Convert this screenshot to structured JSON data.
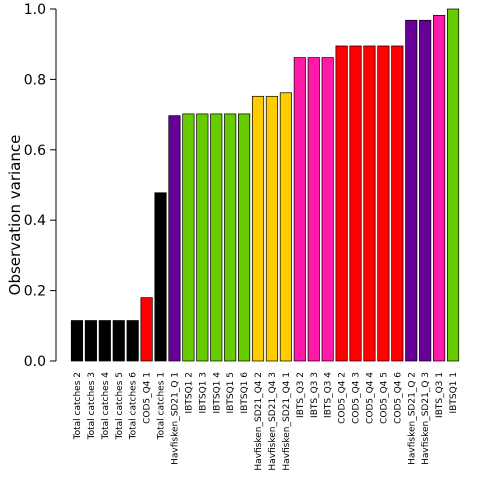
{
  "chart_data": {
    "type": "bar",
    "title": "",
    "xlabel": "",
    "ylabel": "Observation variance",
    "ylim": [
      0,
      1.0
    ],
    "yticks": [
      "0.0",
      "0.2",
      "0.4",
      "0.6",
      "0.8",
      "1.0"
    ],
    "grid": false,
    "legend": "none",
    "categories": [
      "Total catches 2",
      "Total catches 3",
      "Total catches 4",
      "Total catches 5",
      "Total catches 6",
      "COD5_Q4 1",
      "Total catches 1",
      "Havfisken_SD21_Q 1",
      "IBTSQ1 2",
      "IBTSQ1 3",
      "IBTSQ1 4",
      "IBTSQ1 5",
      "IBTSQ1 6",
      "Havfisken_SD21_Q4 2",
      "Havfisken_SD21_Q4 3",
      "Havfisken_SD21_Q4 1",
      "IBTS_Q3 2",
      "IBTS_Q3 3",
      "IBTS_Q3 4",
      "COD5_Q4 2",
      "COD5_Q4 3",
      "COD5_Q4 4",
      "COD5_Q4 5",
      "COD5_Q4 6",
      "Havfisken_SD21_Q 2",
      "Havfisken_SD21_Q 3",
      "IBTS_Q3 1",
      "IBTSQ1 1"
    ],
    "values": [
      0.115,
      0.115,
      0.115,
      0.115,
      0.115,
      0.18,
      0.478,
      0.697,
      0.702,
      0.702,
      0.702,
      0.702,
      0.702,
      0.752,
      0.752,
      0.762,
      0.862,
      0.862,
      0.862,
      0.895,
      0.895,
      0.895,
      0.895,
      0.895,
      0.968,
      0.968,
      0.982,
      1.0
    ],
    "colors": [
      "#000000",
      "#000000",
      "#000000",
      "#000000",
      "#000000",
      "#ff0000",
      "#000000",
      "#660099",
      "#66cc00",
      "#66cc00",
      "#66cc00",
      "#66cc00",
      "#66cc00",
      "#ffcc00",
      "#ffcc00",
      "#ffcc00",
      "#ff1aaa",
      "#ff1aaa",
      "#ff1aaa",
      "#ff0000",
      "#ff0000",
      "#ff0000",
      "#ff0000",
      "#ff0000",
      "#660099",
      "#660099",
      "#ff1aaa",
      "#66cc00"
    ]
  }
}
